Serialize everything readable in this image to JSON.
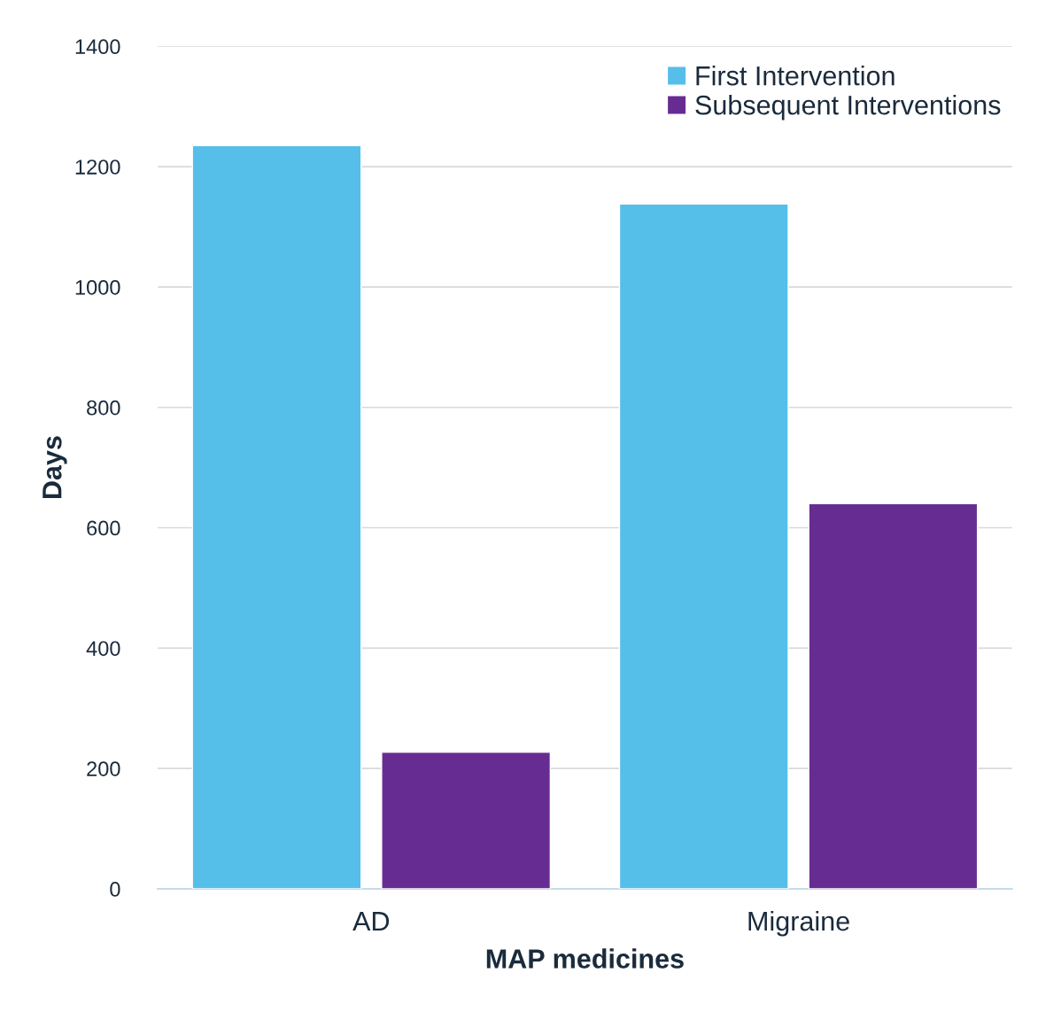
{
  "chart_data": {
    "type": "bar",
    "xlabel": "MAP medicines",
    "ylabel": "Days",
    "categories": [
      "AD",
      "Migraine"
    ],
    "series": [
      {
        "name": "First Intervention",
        "color": "#55bee9",
        "values": [
          1235,
          1138
        ]
      },
      {
        "name": "Subsequent Interventions",
        "color": "#672c91",
        "values": [
          227,
          640
        ]
      }
    ],
    "ylim": [
      0,
      1400
    ],
    "yticks": [
      0,
      200,
      400,
      600,
      800,
      1000,
      1200,
      1400
    ],
    "grid": "y",
    "legend": "top right"
  }
}
